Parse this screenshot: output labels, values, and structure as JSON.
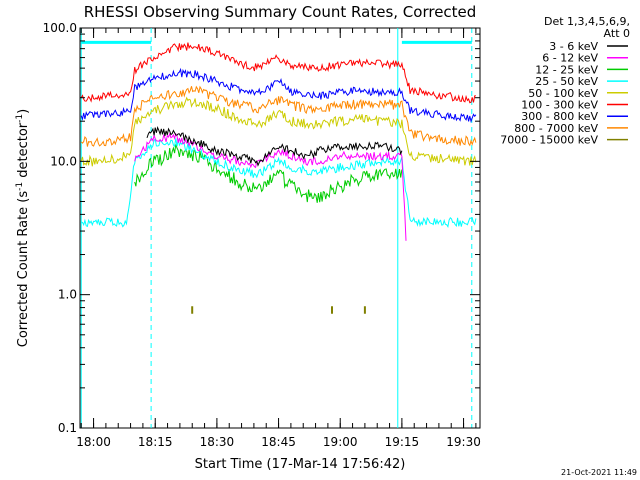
{
  "chart_data": {
    "type": "line",
    "title": "RHESSI Observing Summary Count Rates, Corrected",
    "xlabel": "Start Time (17-Mar-14 17:56:42)",
    "ylabel_main": "Corrected Count Rate (s",
    "ylabel_sup1": "-1",
    "ylabel_mid": " detector",
    "ylabel_sup2": "-1",
    "ylabel_end": ")",
    "yscale": "log",
    "ylim": [
      0.1,
      100
    ],
    "xlim": [
      "17:56:42",
      "19:34:00"
    ],
    "y_ticks": [
      "100.0",
      "10.0",
      "1.0",
      "0.1"
    ],
    "x_ticks": [
      "18:00",
      "18:15",
      "18:30",
      "18:45",
      "19:00",
      "19:15",
      "19:30"
    ],
    "legend_header": [
      "Det 1,3,4,5,6,9,",
      "Att 0"
    ],
    "legend_placement": "right",
    "footer": "21-Oct-2021 11:49",
    "series": [
      {
        "name": "3 - 6 keV",
        "color": "#000000",
        "points": [
          [
            "18:13",
            15
          ],
          [
            "18:15",
            17
          ],
          [
            "18:20",
            16
          ],
          [
            "18:25",
            14
          ],
          [
            "18:30",
            12
          ],
          [
            "18:35",
            11
          ],
          [
            "18:40",
            10
          ],
          [
            "18:45",
            13
          ],
          [
            "18:48",
            12
          ],
          [
            "18:52",
            11
          ],
          [
            "18:55",
            12
          ],
          [
            "19:00",
            13
          ],
          [
            "19:05",
            13
          ],
          [
            "19:10",
            13
          ],
          [
            "19:15",
            12
          ]
        ]
      },
      {
        "name": "6 - 12 keV",
        "color": "#ff00ff",
        "points": [
          [
            "18:10",
            10
          ],
          [
            "18:13",
            13
          ],
          [
            "18:15",
            15
          ],
          [
            "18:20",
            15
          ],
          [
            "18:25",
            13
          ],
          [
            "18:30",
            11
          ],
          [
            "18:35",
            10
          ],
          [
            "18:40",
            9.5
          ],
          [
            "18:45",
            12
          ],
          [
            "18:48",
            11
          ],
          [
            "18:52",
            10
          ],
          [
            "18:55",
            10
          ],
          [
            "19:00",
            11
          ],
          [
            "19:05",
            11
          ],
          [
            "19:10",
            11
          ],
          [
            "19:15",
            11
          ],
          [
            "19:16",
            2.6
          ]
        ]
      },
      {
        "name": "12 - 25 keV",
        "color": "#00cc00",
        "points": [
          [
            "18:10",
            7
          ],
          [
            "18:13",
            9
          ],
          [
            "18:15",
            10
          ],
          [
            "18:20",
            12
          ],
          [
            "18:25",
            11
          ],
          [
            "18:30",
            9
          ],
          [
            "18:35",
            7
          ],
          [
            "18:40",
            6
          ],
          [
            "18:45",
            8
          ],
          [
            "18:48",
            6.5
          ],
          [
            "18:52",
            5.5
          ],
          [
            "18:55",
            5.5
          ],
          [
            "19:00",
            6.5
          ],
          [
            "19:05",
            7.5
          ],
          [
            "19:10",
            8
          ],
          [
            "19:15",
            8
          ]
        ]
      },
      {
        "name": "25 - 50 keV",
        "color": "#00ffff",
        "points": [
          [
            "17:57",
            3.5
          ],
          [
            "18:00",
            3.5
          ],
          [
            "18:05",
            3.5
          ],
          [
            "18:08",
            3.5
          ],
          [
            "18:10",
            10
          ],
          [
            "18:15",
            14
          ],
          [
            "18:20",
            14
          ],
          [
            "18:25",
            12
          ],
          [
            "18:30",
            10
          ],
          [
            "18:35",
            8.5
          ],
          [
            "18:40",
            8
          ],
          [
            "18:45",
            10
          ],
          [
            "18:48",
            9
          ],
          [
            "18:52",
            8.5
          ],
          [
            "18:55",
            8.5
          ],
          [
            "19:00",
            9
          ],
          [
            "19:05",
            9.5
          ],
          [
            "19:10",
            10
          ],
          [
            "19:15",
            10
          ],
          [
            "19:17",
            3.5
          ],
          [
            "19:20",
            3.5
          ],
          [
            "19:25",
            3.5
          ],
          [
            "19:33",
            3.5
          ]
        ]
      },
      {
        "name": "50 - 100 keV",
        "color": "#cccc00",
        "points": [
          [
            "17:57",
            10
          ],
          [
            "18:00",
            10
          ],
          [
            "18:05",
            10.5
          ],
          [
            "18:09",
            11
          ],
          [
            "18:10",
            20
          ],
          [
            "18:15",
            24
          ],
          [
            "18:20",
            27
          ],
          [
            "18:25",
            28
          ],
          [
            "18:30",
            25
          ],
          [
            "18:35",
            21
          ],
          [
            "18:40",
            19
          ],
          [
            "18:45",
            23
          ],
          [
            "18:48",
            20
          ],
          [
            "18:52",
            19
          ],
          [
            "18:55",
            19
          ],
          [
            "19:00",
            20
          ],
          [
            "19:05",
            21
          ],
          [
            "19:10",
            20
          ],
          [
            "19:15",
            19
          ],
          [
            "19:17",
            11
          ],
          [
            "19:25",
            10.5
          ],
          [
            "19:33",
            10
          ]
        ]
      },
      {
        "name": "100 - 300 keV",
        "color": "#ff0000",
        "points": [
          [
            "17:57",
            30
          ],
          [
            "18:00",
            30
          ],
          [
            "18:05",
            31
          ],
          [
            "18:09",
            32
          ],
          [
            "18:10",
            48
          ],
          [
            "18:15",
            62
          ],
          [
            "18:20",
            72
          ],
          [
            "18:25",
            73
          ],
          [
            "18:30",
            65
          ],
          [
            "18:35",
            55
          ],
          [
            "18:40",
            50
          ],
          [
            "18:45",
            60
          ],
          [
            "18:48",
            52
          ],
          [
            "18:52",
            50
          ],
          [
            "18:55",
            50
          ],
          [
            "19:00",
            53
          ],
          [
            "19:05",
            55
          ],
          [
            "19:10",
            54
          ],
          [
            "19:15",
            53
          ],
          [
            "19:17",
            34
          ],
          [
            "19:25",
            31
          ],
          [
            "19:33",
            29
          ]
        ]
      },
      {
        "name": "300 - 800 keV",
        "color": "#0000ff",
        "points": [
          [
            "17:57",
            22
          ],
          [
            "18:00",
            22
          ],
          [
            "18:05",
            23
          ],
          [
            "18:09",
            24
          ],
          [
            "18:10",
            36
          ],
          [
            "18:15",
            42
          ],
          [
            "18:20",
            46
          ],
          [
            "18:25",
            45
          ],
          [
            "18:30",
            40
          ],
          [
            "18:35",
            35
          ],
          [
            "18:40",
            32
          ],
          [
            "18:45",
            40
          ],
          [
            "18:48",
            33
          ],
          [
            "18:52",
            31
          ],
          [
            "18:55",
            31
          ],
          [
            "19:00",
            33
          ],
          [
            "19:05",
            34
          ],
          [
            "19:10",
            33
          ],
          [
            "19:15",
            33
          ],
          [
            "19:17",
            24
          ],
          [
            "19:25",
            22
          ],
          [
            "19:33",
            21
          ]
        ]
      },
      {
        "name": "800 - 7000 keV",
        "color": "#ff8800",
        "points": [
          [
            "17:57",
            14
          ],
          [
            "18:00",
            14
          ],
          [
            "18:05",
            14.5
          ],
          [
            "18:09",
            15
          ],
          [
            "18:10",
            25
          ],
          [
            "18:15",
            30
          ],
          [
            "18:20",
            33
          ],
          [
            "18:25",
            34
          ],
          [
            "18:30",
            30
          ],
          [
            "18:35",
            27
          ],
          [
            "18:40",
            25
          ],
          [
            "18:45",
            29
          ],
          [
            "18:48",
            26
          ],
          [
            "18:52",
            25
          ],
          [
            "18:55",
            25
          ],
          [
            "19:00",
            26
          ],
          [
            "19:05",
            27
          ],
          [
            "19:10",
            27
          ],
          [
            "19:15",
            26
          ],
          [
            "19:17",
            16
          ],
          [
            "19:25",
            14.5
          ],
          [
            "19:33",
            14
          ]
        ]
      },
      {
        "name": "7000 - 15000 keV",
        "color": "#808000",
        "points": [
          [
            "18:24",
            0.72
          ],
          [
            "18:24",
            0.82
          ],
          null,
          [
            "18:58",
            0.72
          ],
          [
            "18:58",
            0.82
          ],
          null,
          [
            "19:06",
            0.72
          ],
          [
            "19:06",
            0.82
          ]
        ]
      }
    ],
    "annotations": [
      {
        "type": "attenuator_trace",
        "color": "#00ffff",
        "values": [
          [
            "17:57",
            78
          ],
          [
            "18:14",
            78
          ],
          null,
          [
            "19:15",
            78
          ],
          [
            "19:32",
            78
          ]
        ]
      },
      {
        "type": "vline_solid",
        "color": "#00ffff",
        "x": [
          "17:57",
          "19:14"
        ]
      },
      {
        "type": "vline_dashed",
        "color": "#00ffff",
        "x": [
          "18:14",
          "19:32"
        ]
      }
    ]
  }
}
